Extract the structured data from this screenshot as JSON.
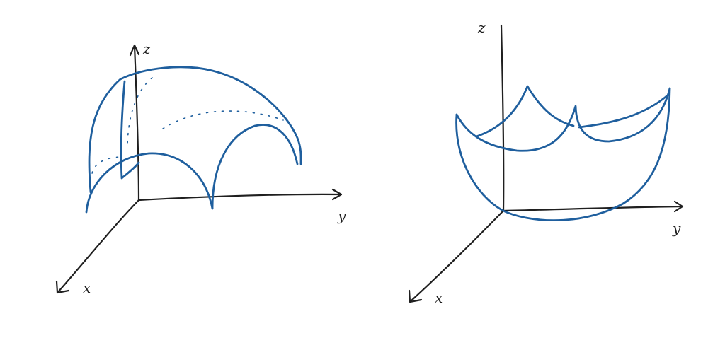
{
  "sketches": [
    {
      "id": "dome",
      "axes": {
        "x": "x",
        "y": "y",
        "z": "z"
      }
    },
    {
      "id": "bowl",
      "axes": {
        "x": "x",
        "y": "y",
        "z": "z"
      }
    }
  ],
  "colors": {
    "ink": "#1f1f1f",
    "surface": "#1f5f9e"
  }
}
